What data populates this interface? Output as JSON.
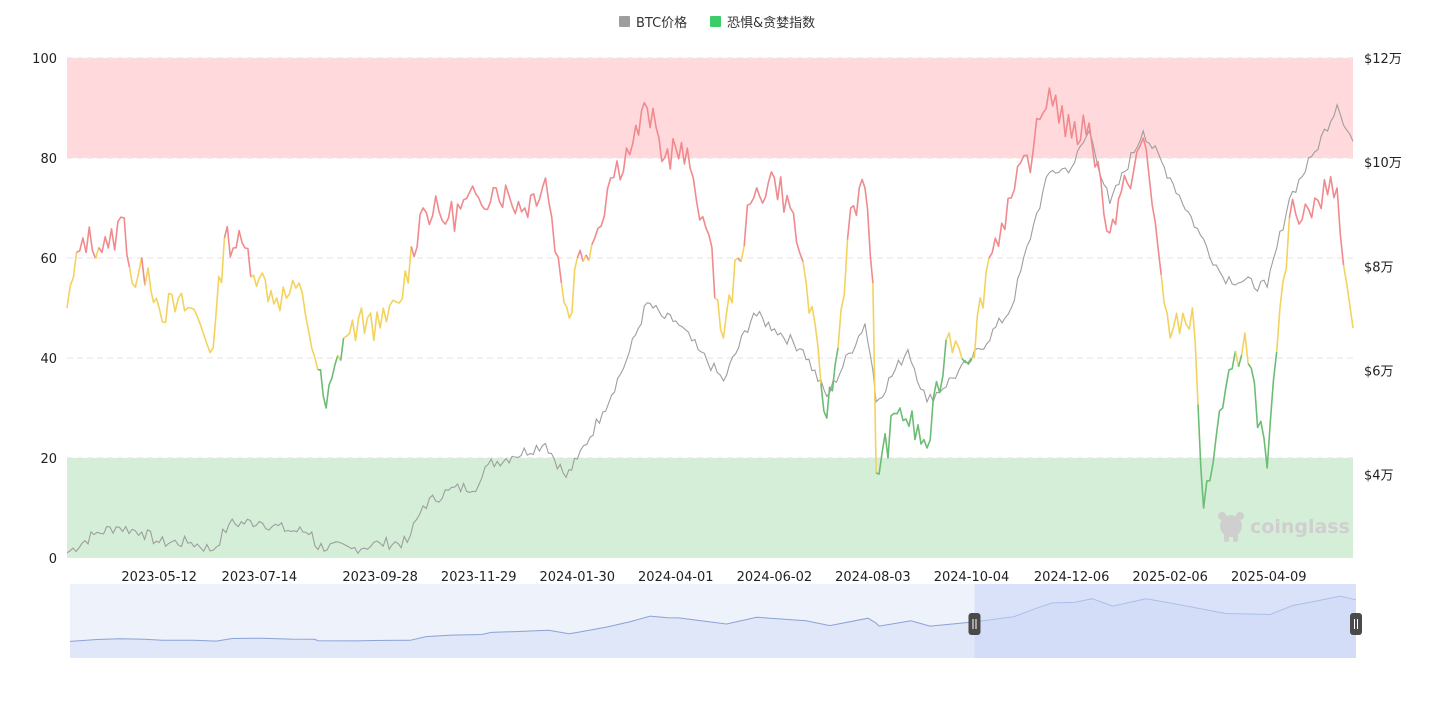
{
  "legend": {
    "items": [
      {
        "label": "BTC价格",
        "color": "#9e9e9e"
      },
      {
        "label": "恐惧&贪婪指数",
        "color": "#3dcc6a"
      }
    ]
  },
  "watermark": "coinglass",
  "chart_data": {
    "type": "line",
    "x_ticks": [
      "2023-05-12",
      "2023-07-14",
      "2023-09-28",
      "2023-11-29",
      "2024-01-30",
      "2024-04-01",
      "2024-06-02",
      "2024-08-03",
      "2024-10-04",
      "2024-12-06",
      "2025-02-06",
      "2025-04-09"
    ],
    "x_range": [
      "2023-03-15",
      "2025-06-01"
    ],
    "left_axis": {
      "ticks": [
        0,
        20,
        40,
        60,
        80,
        100
      ],
      "ylim": [
        0,
        100
      ]
    },
    "right_axis": {
      "ticks": [
        "$4万",
        "$6万",
        "$8万",
        "$10万",
        "$12万"
      ],
      "tick_values": [
        40000,
        60000,
        80000,
        100000,
        120000
      ],
      "ylim": [
        24000,
        120000
      ]
    },
    "bands": [
      {
        "from": 80,
        "to": 100,
        "color": "#ffd9dc"
      },
      {
        "from": 0,
        "to": 20,
        "color": "#d5eed8"
      }
    ],
    "zone_colors": {
      "greed": "#f08a8e",
      "neutral": "#f3d35e",
      "fear": "#6cbd74"
    },
    "series": [
      {
        "name": "BTC价格",
        "axis": "right",
        "color": "#9e9e9e",
        "points": [
          [
            "2023-03-15",
            25000
          ],
          [
            "2023-04-01",
            28500
          ],
          [
            "2023-04-15",
            30000
          ],
          [
            "2023-05-01",
            29000
          ],
          [
            "2023-05-12",
            27000
          ],
          [
            "2023-06-01",
            27000
          ],
          [
            "2023-06-15",
            25500
          ],
          [
            "2023-06-25",
            30500
          ],
          [
            "2023-07-14",
            31000
          ],
          [
            "2023-08-01",
            29300
          ],
          [
            "2023-08-16",
            29000
          ],
          [
            "2023-08-18",
            26300
          ],
          [
            "2023-09-10",
            25800
          ],
          [
            "2023-09-28",
            26800
          ],
          [
            "2023-10-15",
            27000
          ],
          [
            "2023-10-25",
            34000
          ],
          [
            "2023-11-10",
            37000
          ],
          [
            "2023-11-29",
            38000
          ],
          [
            "2023-12-05",
            42000
          ],
          [
            "2023-12-20",
            43500
          ],
          [
            "2024-01-10",
            46000
          ],
          [
            "2024-01-23",
            39500
          ],
          [
            "2024-01-30",
            43000
          ],
          [
            "2024-02-15",
            52000
          ],
          [
            "2024-03-01",
            62000
          ],
          [
            "2024-03-14",
            73000
          ],
          [
            "2024-03-25",
            70000
          ],
          [
            "2024-04-01",
            69500
          ],
          [
            "2024-04-15",
            64000
          ],
          [
            "2024-05-01",
            58000
          ],
          [
            "2024-05-20",
            71000
          ],
          [
            "2024-06-02",
            68000
          ],
          [
            "2024-06-20",
            64000
          ],
          [
            "2024-07-05",
            55000
          ],
          [
            "2024-07-29",
            69000
          ],
          [
            "2024-08-03",
            60000
          ],
          [
            "2024-08-05",
            54000
          ],
          [
            "2024-08-25",
            64000
          ],
          [
            "2024-09-06",
            54000
          ],
          [
            "2024-10-04",
            62000
          ],
          [
            "2024-10-29",
            72000
          ],
          [
            "2024-11-12",
            88000
          ],
          [
            "2024-11-22",
            98000
          ],
          [
            "2024-12-06",
            99000
          ],
          [
            "2024-12-17",
            106000
          ],
          [
            "2024-12-30",
            92000
          ],
          [
            "2025-01-20",
            106000
          ],
          [
            "2025-02-06",
            97000
          ],
          [
            "2025-02-25",
            86000
          ],
          [
            "2025-03-11",
            78000
          ],
          [
            "2025-04-08",
            76000
          ],
          [
            "2025-04-22",
            93000
          ],
          [
            "2025-05-08",
            102000
          ],
          [
            "2025-05-22",
            111000
          ],
          [
            "2025-06-01",
            104000
          ]
        ]
      },
      {
        "name": "恐惧&贪婪指数",
        "axis": "left",
        "points": [
          [
            "2023-03-15",
            50
          ],
          [
            "2023-03-25",
            64
          ],
          [
            "2023-04-10",
            62
          ],
          [
            "2023-04-20",
            68
          ],
          [
            "2023-04-25",
            55
          ],
          [
            "2023-05-05",
            58
          ],
          [
            "2023-05-12",
            50
          ],
          [
            "2023-06-01",
            50
          ],
          [
            "2023-06-15",
            42
          ],
          [
            "2023-06-22",
            64
          ],
          [
            "2023-07-05",
            62
          ],
          [
            "2023-07-14",
            56
          ],
          [
            "2023-07-25",
            52
          ],
          [
            "2023-08-10",
            53
          ],
          [
            "2023-08-18",
            40
          ],
          [
            "2023-08-25",
            30
          ],
          [
            "2023-09-05",
            44
          ],
          [
            "2023-09-20",
            48
          ],
          [
            "2023-09-28",
            46
          ],
          [
            "2023-10-10",
            51
          ],
          [
            "2023-10-25",
            70
          ],
          [
            "2023-11-10",
            68
          ],
          [
            "2023-11-29",
            72
          ],
          [
            "2023-12-10",
            74
          ],
          [
            "2023-12-28",
            70
          ],
          [
            "2024-01-10",
            76
          ],
          [
            "2024-01-20",
            55
          ],
          [
            "2024-01-25",
            48
          ],
          [
            "2024-01-30",
            60
          ],
          [
            "2024-02-10",
            64
          ],
          [
            "2024-02-20",
            76
          ],
          [
            "2024-03-05",
            83
          ],
          [
            "2024-03-14",
            90
          ],
          [
            "2024-03-25",
            80
          ],
          [
            "2024-04-01",
            82
          ],
          [
            "2024-04-10",
            78
          ],
          [
            "2024-04-20",
            66
          ],
          [
            "2024-05-01",
            44
          ],
          [
            "2024-05-10",
            60
          ],
          [
            "2024-05-20",
            72
          ],
          [
            "2024-06-02",
            76
          ],
          [
            "2024-06-12",
            70
          ],
          [
            "2024-06-22",
            55
          ],
          [
            "2024-07-05",
            28
          ],
          [
            "2024-07-12",
            42
          ],
          [
            "2024-07-20",
            70
          ],
          [
            "2024-07-29",
            74
          ],
          [
            "2024-08-03",
            55
          ],
          [
            "2024-08-05",
            17
          ],
          [
            "2024-08-20",
            30
          ],
          [
            "2024-09-06",
            22
          ],
          [
            "2024-09-20",
            45
          ],
          [
            "2024-10-04",
            40
          ],
          [
            "2024-10-15",
            60
          ],
          [
            "2024-10-29",
            72
          ],
          [
            "2024-11-12",
            82
          ],
          [
            "2024-11-22",
            94
          ],
          [
            "2024-12-06",
            84
          ],
          [
            "2024-12-17",
            87
          ],
          [
            "2024-12-30",
            65
          ],
          [
            "2025-01-10",
            75
          ],
          [
            "2025-01-20",
            84
          ],
          [
            "2025-02-06",
            44
          ],
          [
            "2025-02-20",
            50
          ],
          [
            "2025-02-27",
            10
          ],
          [
            "2025-03-11",
            30
          ],
          [
            "2025-03-25",
            45
          ],
          [
            "2025-04-08",
            18
          ],
          [
            "2025-04-22",
            68
          ],
          [
            "2025-05-08",
            72
          ],
          [
            "2025-05-22",
            74
          ],
          [
            "2025-05-28",
            55
          ],
          [
            "2025-06-01",
            46
          ]
        ]
      }
    ],
    "navigator_range": [
      "2024-10-04",
      "2025-06-01"
    ]
  }
}
